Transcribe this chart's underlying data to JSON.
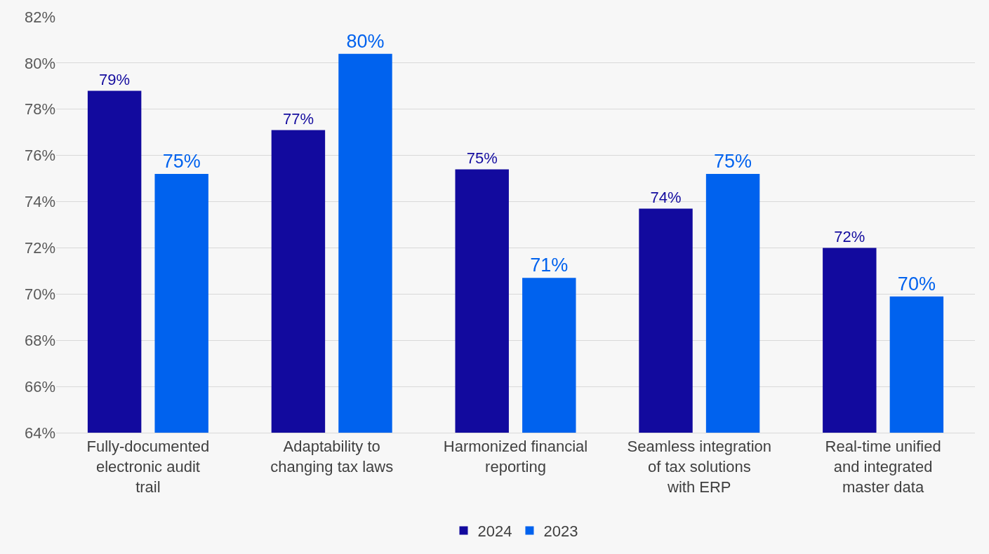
{
  "chart_data": {
    "type": "bar",
    "categories": [
      "Fully-documented electronic audit trail",
      "Adaptability to changing tax laws",
      "Harmonized financial reporting",
      "Seamless integration of tax solutions with ERP",
      "Real-time unified and integrated master data"
    ],
    "series": [
      {
        "name": "2024",
        "color": "#120a9e",
        "values": [
          78.8,
          77.1,
          75.4,
          73.7,
          72.0
        ],
        "value_labels": [
          "79%",
          "77%",
          "75%",
          "74%",
          "72%"
        ]
      },
      {
        "name": "2023",
        "color": "#0062ee",
        "values": [
          75.2,
          80.4,
          70.7,
          75.2,
          69.9
        ],
        "value_labels": [
          "75%",
          "80%",
          "71%",
          "75%",
          "70%"
        ]
      }
    ],
    "ylim": [
      64,
      82
    ],
    "yticks": [
      {
        "value": 64,
        "label": "64%"
      },
      {
        "value": 66,
        "label": "66%"
      },
      {
        "value": 68,
        "label": "68%"
      },
      {
        "value": 70,
        "label": "70%"
      },
      {
        "value": 72,
        "label": "72%"
      },
      {
        "value": 74,
        "label": "74%"
      },
      {
        "value": 76,
        "label": "76%"
      },
      {
        "value": 78,
        "label": "78%"
      },
      {
        "value": 80,
        "label": "80%"
      },
      {
        "value": 82,
        "label": "82%"
      }
    ],
    "grid": "y",
    "legend": "bottom"
  }
}
